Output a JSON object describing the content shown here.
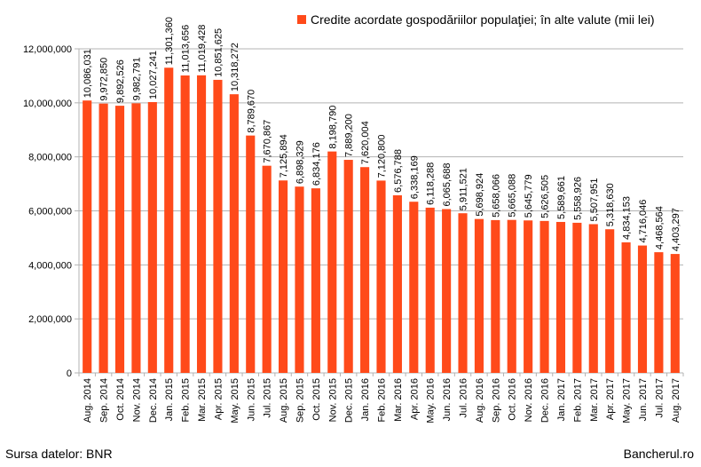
{
  "chart_data": {
    "type": "bar",
    "title": "",
    "xlabel": "",
    "ylabel": "",
    "ylim": [
      0,
      12000000
    ],
    "yticks": [
      0,
      2000000,
      4000000,
      6000000,
      8000000,
      10000000,
      12000000
    ],
    "ytick_labels": [
      "0",
      "2,000,000",
      "4,000,000",
      "6,000,000",
      "8,000,000",
      "10,000,000",
      "12,000,000"
    ],
    "grid": "horizontal",
    "legend_position": "top-right",
    "categories": [
      "Aug. 2014",
      "Sep. 2014",
      "Oct. 2014",
      "Nov. 2014",
      "Dec. 2014",
      "Jan. 2015",
      "Feb. 2015",
      "Mar. 2015",
      "Apr. 2015",
      "May. 2015",
      "Jun. 2015",
      "Jul. 2015",
      "Aug. 2015",
      "Sep. 2015",
      "Oct. 2015",
      "Nov. 2015",
      "Dec. 2015",
      "Jan. 2016",
      "Feb. 2016",
      "Mar. 2016",
      "Apr. 2016",
      "May. 2016",
      "Jun. 2016",
      "Jul. 2016",
      "Aug. 2016",
      "Sep. 2016",
      "Oct. 2016",
      "Nov. 2016",
      "Dec. 2016",
      "Jan. 2017",
      "Feb. 2017",
      "Mar. 2017",
      "Apr. 2017",
      "May. 2017",
      "Jun. 2017",
      "Jul. 2017",
      "Aug. 2017"
    ],
    "series": [
      {
        "name": "Credite acordate gospodăriilor populaţiei; în alte valute (mii lei)",
        "color": "#ff4a1a",
        "values": [
          10086031,
          9972850,
          9892526,
          9982791,
          10027241,
          11301360,
          11013656,
          11019428,
          10851625,
          10318272,
          8789670,
          7670867,
          7125894,
          6898329,
          6834176,
          8198790,
          7889200,
          7620004,
          7120800,
          6576788,
          6338169,
          6118288,
          6065688,
          5911521,
          5698924,
          5658066,
          5665088,
          5645779,
          5626505,
          5589661,
          5558926,
          5507951,
          5318630,
          4834153,
          4716046,
          4468564,
          4403297
        ],
        "value_labels": [
          "10,086,031",
          "9,972,850",
          "9,892,526",
          "9,982,791",
          "10,027,241",
          "11,301,360",
          "11,013,656",
          "11,019,428",
          "10,851,625",
          "10,318,272",
          "8,789,670",
          "7,670,867",
          "7,125,894",
          "6,898,329",
          "6,834,176",
          "8,198,790",
          "7,889,200",
          "7,620,004",
          "7,120,800",
          "6,576,788",
          "6,338,169",
          "6,118,288",
          "6,065,688",
          "5,911,521",
          "5,698,924",
          "5,658,066",
          "5,665,088",
          "5,645,779",
          "5,626,505",
          "5,589,661",
          "5,558,926",
          "5,507,951",
          "5,318,630",
          "4,834,153",
          "4,716,046",
          "4,468,564",
          "4,403,297"
        ]
      }
    ]
  },
  "footer": {
    "source": "Sursa datelor: BNR",
    "site": "Bancherul.ro"
  }
}
